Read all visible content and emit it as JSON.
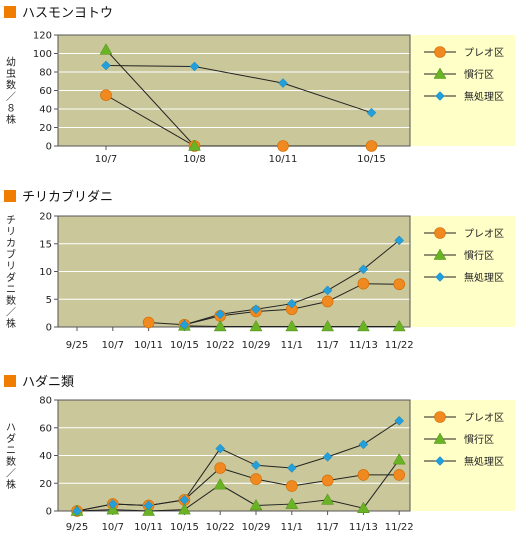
{
  "colors": {
    "plot_bg": "#cac89a",
    "legend_bg": "#ffffc8",
    "title_marker": "#f07d00",
    "grid": "#ffffff",
    "frame": "#555555",
    "line": "#222222",
    "series": [
      "#f08a20",
      "#6ab324",
      "#23a0dc"
    ],
    "markers": [
      "circle",
      "triangle",
      "diamond"
    ]
  },
  "chart_data": [
    {
      "type": "line",
      "title": "ハスモンヨトウ",
      "ylabel": "幼虫数／８株",
      "ylim": [
        0,
        120
      ],
      "yticks": [
        "0",
        "20",
        "40",
        "60",
        "80",
        "100",
        "120"
      ],
      "categories": [
        "10/7",
        "10/8",
        "10/11",
        "10/15"
      ],
      "grid": true,
      "legend_position": "right",
      "series": [
        {
          "name": "プレオ区",
          "values": [
            55,
            0,
            0,
            0
          ]
        },
        {
          "name": "慣行区",
          "values": [
            104,
            0,
            null,
            null
          ]
        },
        {
          "name": "無処理区",
          "values": [
            87,
            86,
            68,
            36
          ]
        }
      ]
    },
    {
      "type": "line",
      "title": "チリカブリダニ",
      "ylabel": "チリカブリダニ数／株",
      "ylim": [
        0,
        20
      ],
      "yticks": [
        "0",
        "5",
        "10",
        "15",
        "20"
      ],
      "categories": [
        "9/25",
        "10/7",
        "10/11",
        "10/15",
        "10/22",
        "10/29",
        "11/1",
        "11/7",
        "11/13",
        "11/22"
      ],
      "grid": true,
      "legend_position": "right",
      "series": [
        {
          "name": "プレオ区",
          "values": [
            null,
            null,
            0.8,
            0.4,
            2.0,
            2.8,
            3.2,
            4.6,
            7.8,
            7.7
          ]
        },
        {
          "name": "慣行区",
          "values": [
            null,
            null,
            null,
            0.2,
            0.1,
            0.1,
            0.1,
            0.1,
            0.1,
            0.1
          ]
        },
        {
          "name": "無処理区",
          "values": [
            null,
            null,
            null,
            0.4,
            2.3,
            3.2,
            4.2,
            6.6,
            10.4,
            15.6
          ]
        }
      ]
    },
    {
      "type": "line",
      "title": "ハダニ類",
      "ylabel": "ハダニ数／株",
      "ylim": [
        0,
        80
      ],
      "yticks": [
        "0",
        "20",
        "40",
        "60",
        "80"
      ],
      "categories": [
        "9/25",
        "10/7",
        "10/11",
        "10/15",
        "10/22",
        "10/29",
        "11/1",
        "11/7",
        "11/13",
        "11/22"
      ],
      "grid": true,
      "legend_position": "right",
      "series": [
        {
          "name": "プレオ区",
          "values": [
            0,
            5,
            4,
            8,
            31,
            23,
            18,
            22,
            26,
            26
          ]
        },
        {
          "name": "慣行区",
          "values": [
            0,
            1,
            0,
            1,
            19,
            4,
            5,
            8,
            2,
            37
          ]
        },
        {
          "name": "無処理区",
          "values": [
            0,
            5,
            4,
            8,
            45,
            33,
            31,
            39,
            48,
            65
          ]
        }
      ]
    }
  ]
}
